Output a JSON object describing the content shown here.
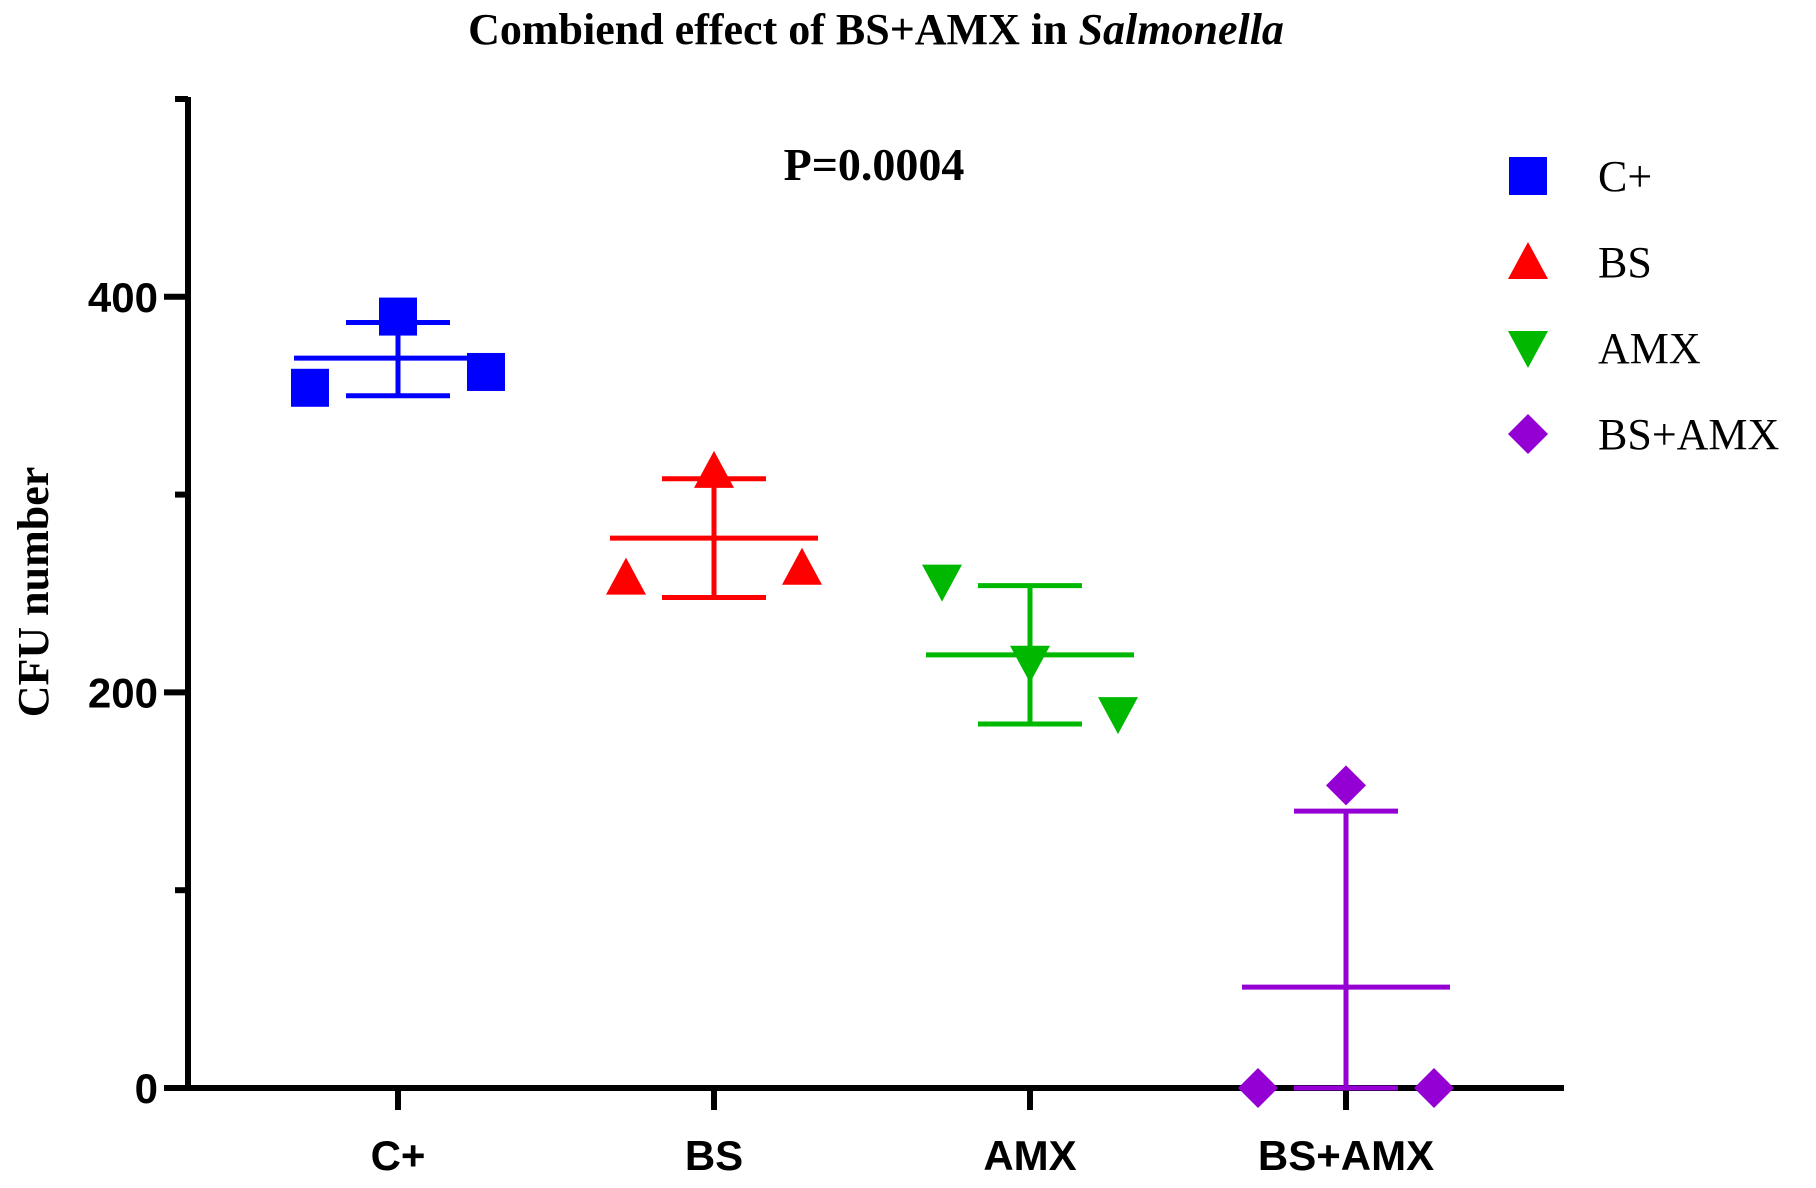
{
  "chart_data": {
    "type": "scatter",
    "title": "Combiend effect of BS+AMX in ",
    "title_italic": "Salmonella",
    "xlabel": "",
    "ylabel": "CFU number",
    "ylim": [
      0,
      500
    ],
    "yticks_major": [
      0,
      200,
      400
    ],
    "yticks_labels": [
      "0",
      "200",
      "400"
    ],
    "yticks_minor": [
      100,
      300,
      500
    ],
    "categories": [
      "C+",
      "BS",
      "AMX",
      "BS+AMX"
    ],
    "annotation": "P=0.0004",
    "legend_position": "top-right",
    "grid": false,
    "series": [
      {
        "name": "C+",
        "color": "#0000ff",
        "marker": "square",
        "values": [
          354,
          390,
          362
        ],
        "mean": 369,
        "error": [
          350,
          387
        ]
      },
      {
        "name": "BS",
        "color": "#ff0000",
        "marker": "triangle-up",
        "values": [
          258,
          312,
          263
        ],
        "mean": 278,
        "error": [
          248,
          308
        ]
      },
      {
        "name": "AMX",
        "color": "#00b800",
        "marker": "triangle-down",
        "values": [
          256,
          215,
          189
        ],
        "mean": 219,
        "error": [
          184,
          254
        ]
      },
      {
        "name": "BS+AMX",
        "color": "#9400d3",
        "marker": "diamond",
        "values": [
          0,
          153,
          0
        ],
        "mean": 51,
        "error": [
          0,
          140
        ]
      }
    ]
  }
}
